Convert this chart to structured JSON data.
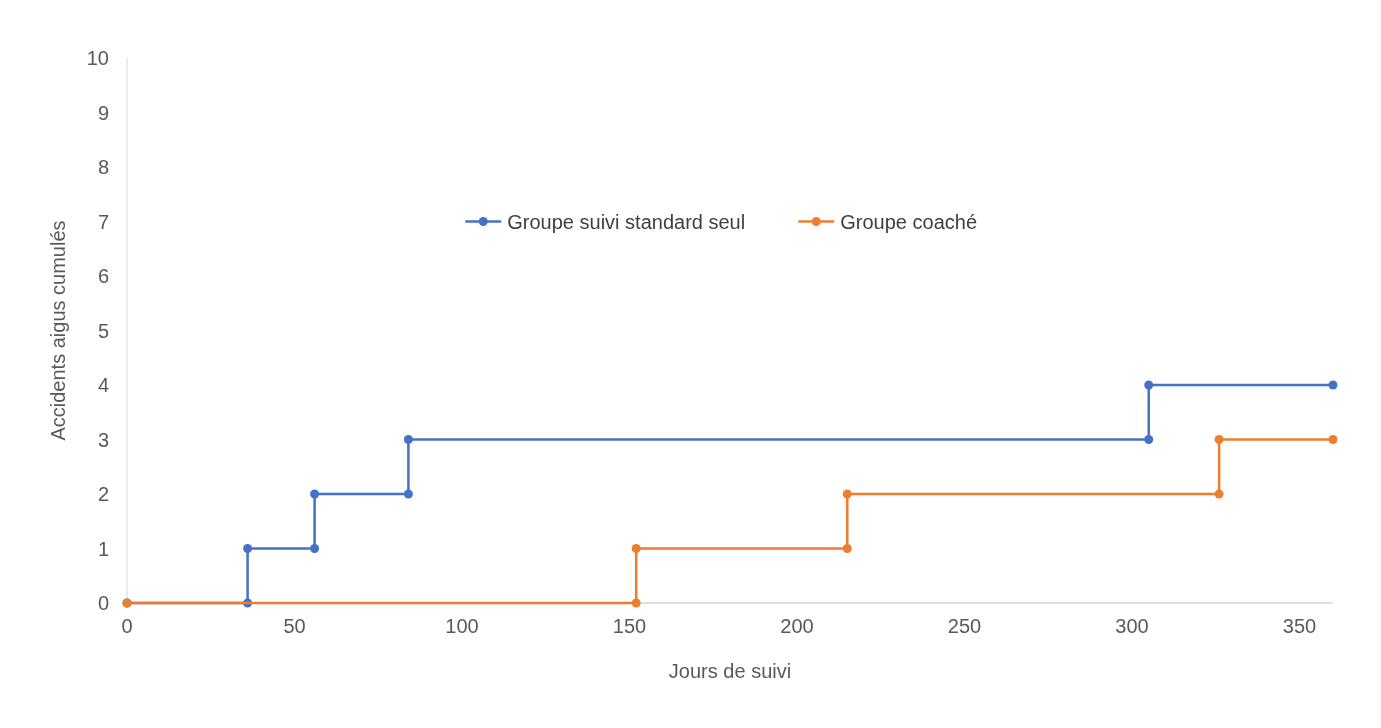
{
  "chart_data": {
    "type": "line",
    "xlabel": "Jours de suivi",
    "ylabel": "Accidents aigus cumulés",
    "xlim": [
      0,
      360
    ],
    "xticks": [
      0,
      50,
      100,
      150,
      200,
      250,
      300,
      350
    ],
    "ylim": [
      0,
      10
    ],
    "yticks": [
      0,
      1,
      2,
      3,
      4,
      5,
      6,
      7,
      8,
      9,
      10
    ],
    "grid": false,
    "legend": "top",
    "marker": "circle",
    "line_style": "solid",
    "series": [
      {
        "name": "Groupe suivi standard seul",
        "color": "#4472c4",
        "x": [
          0,
          36,
          36,
          56,
          56,
          84,
          84,
          305,
          305,
          360
        ],
        "values": [
          0,
          0,
          1,
          1,
          2,
          2,
          3,
          3,
          4,
          4
        ]
      },
      {
        "name": "Groupe coaché",
        "color": "#ed7d31",
        "x": [
          0,
          152,
          152,
          215,
          215,
          326,
          326,
          360
        ],
        "values": [
          0,
          0,
          1,
          1,
          2,
          2,
          3,
          3
        ]
      }
    ]
  }
}
